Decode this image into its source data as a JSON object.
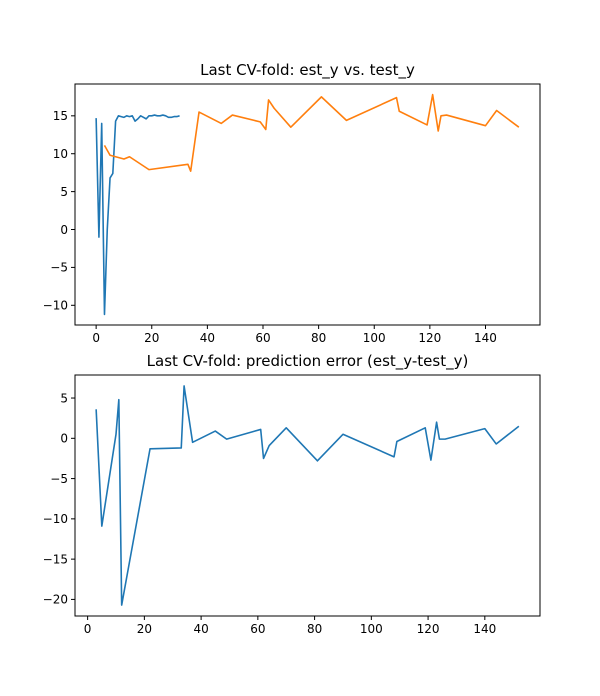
{
  "chart_data": [
    {
      "type": "line",
      "title": "Last CV-fold: est_y vs. test_y",
      "xlabel": "",
      "ylabel": "",
      "xlim": [
        -7.6,
        159.6
      ],
      "ylim": [
        -12.6,
        19.2
      ],
      "xticks": [
        0,
        20,
        40,
        60,
        80,
        100,
        120,
        140
      ],
      "yticks": [
        -10,
        -5,
        0,
        5,
        10,
        15
      ],
      "grid": false,
      "series": [
        {
          "color": "#1f77b4",
          "x": [
            0,
            1,
            2,
            3,
            4,
            5,
            6,
            7,
            8,
            9,
            10,
            11,
            12,
            13,
            14,
            15,
            16,
            17,
            18,
            19,
            20,
            21,
            22,
            23,
            24,
            25,
            26,
            27,
            28,
            29,
            30
          ],
          "y": [
            14.7,
            -1.0,
            14.0,
            -11.2,
            0.0,
            6.8,
            7.4,
            14.3,
            15.0,
            14.9,
            14.8,
            15.0,
            14.9,
            15.0,
            14.3,
            14.6,
            15.0,
            14.8,
            14.6,
            15.0,
            15.0,
            15.1,
            15.0,
            15.0,
            15.1,
            15.0,
            14.8,
            14.8,
            14.9,
            14.9,
            15.0
          ]
        },
        {
          "color": "#ff7f0e",
          "x": [
            3,
            5,
            10,
            12,
            19,
            33,
            34,
            37,
            45,
            49,
            59,
            61,
            62,
            64,
            70,
            81,
            90,
            108,
            109,
            119,
            121,
            123,
            124,
            126,
            140,
            144,
            152
          ],
          "y": [
            11.1,
            9.8,
            9.3,
            9.6,
            7.9,
            8.6,
            7.7,
            15.5,
            14.0,
            15.1,
            14.2,
            13.2,
            17.1,
            16.0,
            13.5,
            17.5,
            14.4,
            17.4,
            15.6,
            13.8,
            17.8,
            13.0,
            15.0,
            15.1,
            13.7,
            15.7,
            13.5
          ]
        }
      ]
    },
    {
      "type": "line",
      "title": "Last CV-fold: prediction error (est_y-test_y)",
      "xlabel": "",
      "ylabel": "",
      "xlim": [
        -4.45,
        159.45
      ],
      "ylim": [
        -22.06,
        7.86
      ],
      "xticks": [
        0,
        20,
        40,
        60,
        80,
        100,
        120,
        140
      ],
      "yticks": [
        -20,
        -15,
        -10,
        -5,
        0,
        5
      ],
      "grid": false,
      "series": [
        {
          "color": "#1f77b4",
          "x": [
            3,
            5,
            10,
            11,
            12,
            22,
            33,
            34,
            37,
            45,
            49,
            61,
            62,
            64,
            70,
            81,
            90,
            108,
            109,
            119,
            121,
            123,
            124,
            126,
            140,
            144,
            152
          ],
          "y": [
            3.6,
            -10.9,
            0.5,
            4.8,
            -20.7,
            -1.3,
            -1.2,
            6.5,
            -0.5,
            0.9,
            -0.1,
            1.1,
            -2.5,
            -0.9,
            1.3,
            -2.8,
            0.5,
            -2.3,
            -0.4,
            1.3,
            -2.7,
            2.0,
            -0.1,
            -0.1,
            1.2,
            -0.7,
            1.5
          ]
        }
      ]
    }
  ]
}
